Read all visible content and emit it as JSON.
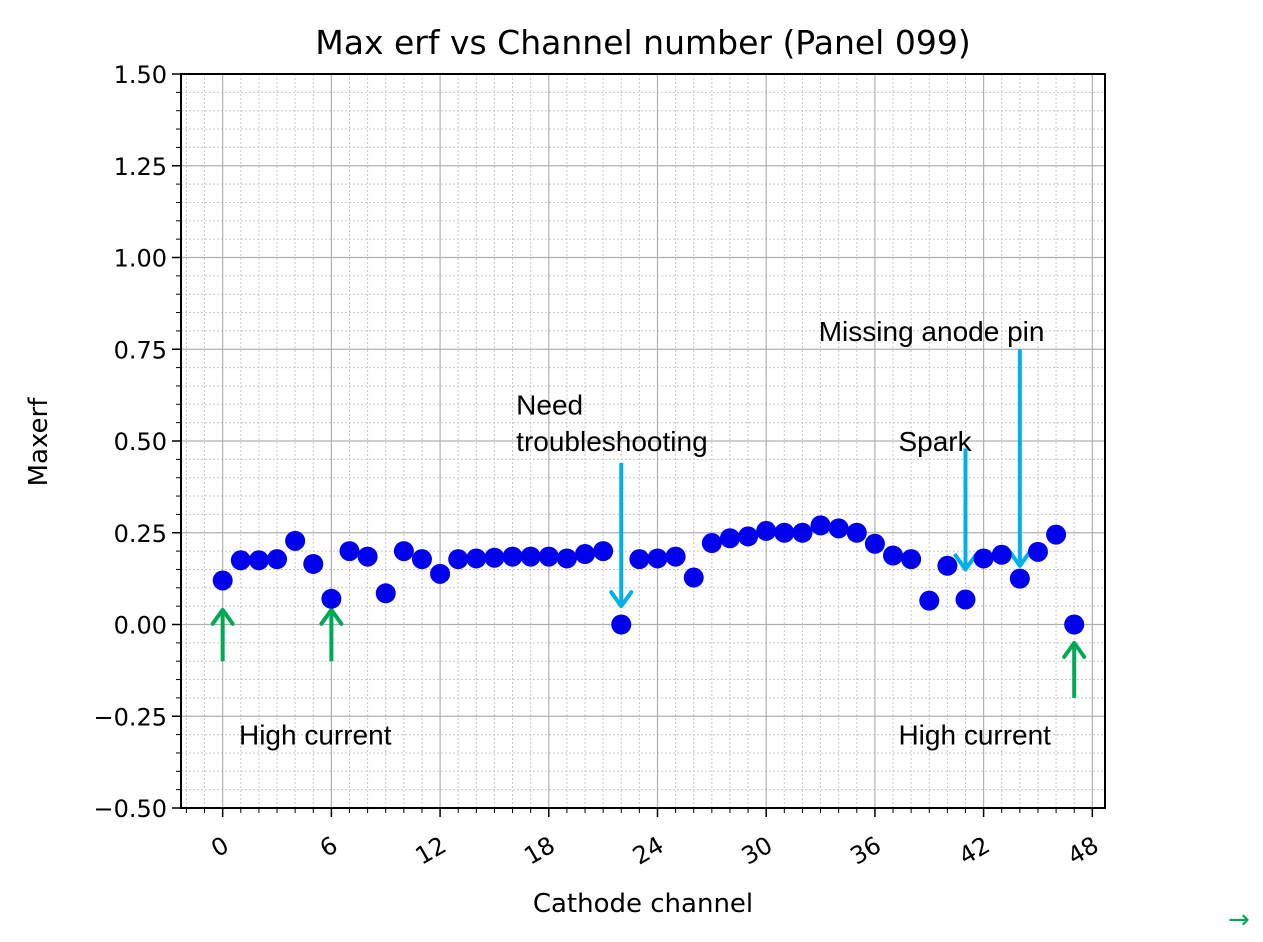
{
  "chart_data": {
    "type": "scatter",
    "title": "Max erf vs Channel number (Panel 099)",
    "xlabel": "Cathode channel",
    "ylabel": "Maxerf",
    "xlim": [
      -2.3,
      48.7
    ],
    "ylim": [
      -0.5,
      1.5
    ],
    "xticks": [
      0,
      6,
      12,
      18,
      24,
      30,
      36,
      42,
      48
    ],
    "xtick_labels": [
      "0",
      "6",
      "12",
      "18",
      "24",
      "30",
      "36",
      "42",
      "48"
    ],
    "yticks": [
      1.5,
      1.25,
      1.0,
      0.75,
      0.5,
      0.25,
      0.0,
      -0.25,
      -0.5
    ],
    "ytick_labels": [
      "1.50",
      "1.25",
      "1.00",
      "0.75",
      "0.50",
      "0.25",
      "0.00",
      "−0.25",
      "−0.50"
    ],
    "grid": true,
    "minor_grid": true,
    "marker_color": "#0000ee",
    "x": [
      0,
      1,
      2,
      3,
      4,
      5,
      6,
      7,
      8,
      9,
      10,
      11,
      12,
      13,
      14,
      15,
      16,
      17,
      18,
      19,
      20,
      21,
      22,
      23,
      24,
      25,
      26,
      27,
      28,
      29,
      30,
      31,
      32,
      33,
      34,
      35,
      36,
      37,
      38,
      39,
      40,
      41,
      42,
      43,
      44,
      45,
      46,
      47
    ],
    "y": [
      0.12,
      0.175,
      0.175,
      0.178,
      0.228,
      0.165,
      0.07,
      0.2,
      0.185,
      0.085,
      0.2,
      0.178,
      0.138,
      0.178,
      0.18,
      0.182,
      0.185,
      0.185,
      0.185,
      0.18,
      0.192,
      0.2,
      0.0,
      0.178,
      0.18,
      0.185,
      0.128,
      0.222,
      0.235,
      0.24,
      0.255,
      0.25,
      0.25,
      0.27,
      0.262,
      0.25,
      0.22,
      0.188,
      0.178,
      0.065,
      0.16,
      0.068,
      0.18,
      0.19,
      0.125,
      0.198,
      0.245,
      0.0
    ],
    "annotations": [
      {
        "text": "High current",
        "x": 0.9,
        "y": -0.3
      },
      {
        "text": "Need",
        "x": 16.2,
        "y": 0.6
      },
      {
        "text": "troubleshooting",
        "x": 16.2,
        "y": 0.5
      },
      {
        "text": "Spark",
        "x": 37.3,
        "y": 0.5
      },
      {
        "text": "Missing anode pin",
        "x": 32.9,
        "y": 0.8
      },
      {
        "text": "High current",
        "x": 37.3,
        "y": -0.3
      }
    ],
    "arrows": [
      {
        "color": "#00aa55",
        "x": 0,
        "y_from": -0.1,
        "y_to": 0.04
      },
      {
        "color": "#00aa55",
        "x": 6,
        "y_from": -0.1,
        "y_to": 0.04
      },
      {
        "color": "#00aa55",
        "x": 47,
        "y_from": -0.2,
        "y_to": -0.05
      },
      {
        "color": "#00b0e8",
        "x": 22,
        "y_from": 0.44,
        "y_to": 0.05
      },
      {
        "color": "#00b0e8",
        "x": 41,
        "y_from": 0.48,
        "y_to": 0.15
      },
      {
        "color": "#00b0e8",
        "x": 44,
        "y_from": 0.75,
        "y_to": 0.16
      }
    ]
  },
  "corner_arrow_glyph": "→"
}
